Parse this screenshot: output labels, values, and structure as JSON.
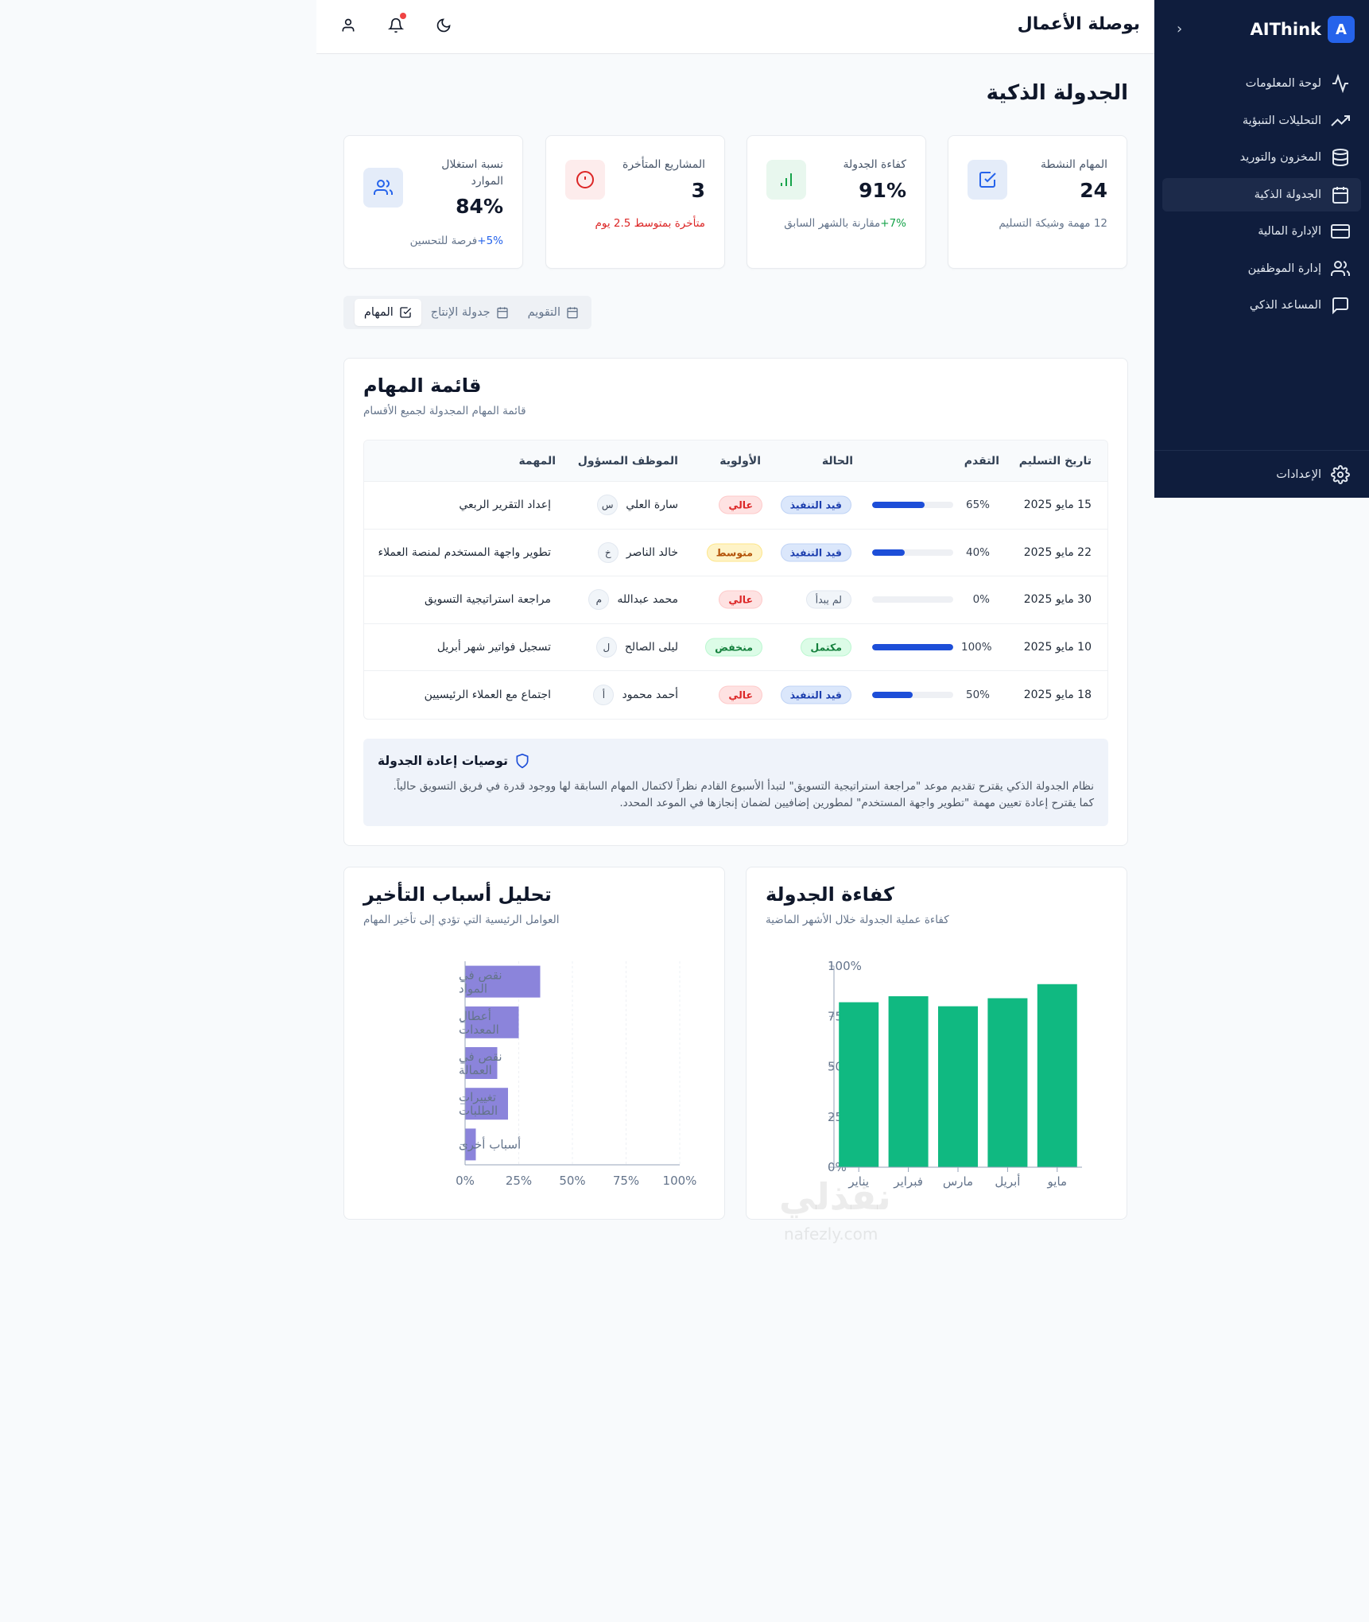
{
  "sidebar": {
    "brand_letter": "A",
    "brand_name": "AIThink",
    "collapse": "‹",
    "items": [
      {
        "label": "لوحة المعلومات"
      },
      {
        "label": "التحليلات التنبؤية"
      },
      {
        "label": "المخزون والتوريد"
      },
      {
        "label": "الجدولة الذكية"
      },
      {
        "label": "الإدارة المالية"
      },
      {
        "label": "إدارة الموظفين"
      },
      {
        "label": "المساعد الذكي"
      }
    ],
    "settings_label": "الإعدادات"
  },
  "header": {
    "title": "بوصلة الأعمال"
  },
  "page_title": "الجدولة الذكية",
  "stats": [
    {
      "label": "المهام النشطة",
      "value": "24",
      "note": "12 مهمة وشيكة التسليم",
      "color": "#2563eb"
    },
    {
      "label": "كفاءة الجدولة",
      "value": "91%",
      "note_highlight": "+7%",
      "note": "مقارنة بالشهر السابق",
      "color": "#16a34a"
    },
    {
      "label": "المشاريع المتأخرة",
      "value": "3",
      "note": "متأخرة بمتوسط 2.5 يوم",
      "color": "#dc2626"
    },
    {
      "label": "نسبة استغلال الموارد",
      "value": "84%",
      "note_highlight": "+5%",
      "note": "فرصة للتحسين",
      "color": "#2563eb"
    }
  ],
  "tabs": [
    {
      "label": "المهام"
    },
    {
      "label": "جدولة الإنتاج"
    },
    {
      "label": "التقويم"
    }
  ],
  "tasks": {
    "title": "قائمة المهام",
    "subtitle": "قائمة المهام المجدولة لجميع الأقسام",
    "columns": {
      "date": "تاريخ التسليم",
      "progress": "التقدم",
      "status": "الحالة",
      "priority": "الأولوية",
      "employee": "الموظف المسؤول",
      "task": "المهمة"
    },
    "rows": [
      {
        "date": "15 مايو 2025",
        "progress": 65,
        "progress_label": "65%",
        "status": "قيد التنفيذ",
        "status_type": "prog",
        "priority": "عالي",
        "priority_type": "high",
        "initial": "س",
        "employee": "سارة العلي",
        "task": "إعداد التقرير الربعي"
      },
      {
        "date": "22 مايو 2025",
        "progress": 40,
        "progress_label": "40%",
        "status": "قيد التنفيذ",
        "status_type": "prog",
        "priority": "متوسط",
        "priority_type": "med",
        "initial": "خ",
        "employee": "خالد الناصر",
        "task": "تطوير واجهة المستخدم لمنصة العملاء"
      },
      {
        "date": "30 مايو 2025",
        "progress": 0,
        "progress_label": "0%",
        "status": "لم يبدأ",
        "status_type": "none",
        "priority": "عالي",
        "priority_type": "high",
        "initial": "م",
        "employee": "محمد عبدالله",
        "task": "مراجعة استراتيجية التسويق"
      },
      {
        "date": "10 مايو 2025",
        "progress": 100,
        "progress_label": "100%",
        "status": "مكتمل",
        "status_type": "done",
        "priority": "منخفض",
        "priority_type": "low",
        "initial": "ل",
        "employee": "ليلى الصالح",
        "task": "تسجيل فواتير شهر أبريل"
      },
      {
        "date": "18 مايو 2025",
        "progress": 50,
        "progress_label": "50%",
        "status": "قيد التنفيذ",
        "status_type": "prog",
        "priority": "عالي",
        "priority_type": "high",
        "initial": "أ",
        "employee": "أحمد محمود",
        "task": "اجتماع مع العملاء الرئيسيين"
      }
    ]
  },
  "recommendations": {
    "title": "توصيات إعادة الجدولة",
    "text": "نظام الجدولة الذكي يقترح تقديم موعد \"مراجعة استراتيجية التسويق\" لتبدأ الأسبوع القادم نظراً لاكتمال المهام السابقة لها ووجود قدرة في فريق التسويق حالياً. كما يقترح إعادة تعيين مهمة \"تطوير واجهة المستخدم\" لمطورين إضافيين لضمان إنجازها في الموعد المحدد."
  },
  "delay_chart": {
    "title": "تحليل أسباب التأخير",
    "subtitle": "العوامل الرئيسية التي تؤدي إلى تأخير المهام"
  },
  "efficiency_chart": {
    "title": "كفاءة الجدولة",
    "subtitle": "كفاءة عملية الجدولة خلال الأشهر الماضية"
  },
  "chart_data": [
    {
      "type": "bar",
      "orientation": "horizontal",
      "categories": [
        [
          "نقص في",
          "المواد"
        ],
        [
          "أعطال",
          "المعدات"
        ],
        [
          "نقص في",
          "العمالة"
        ],
        [
          "تغييرات",
          "الطلبات"
        ],
        [
          "أسباب أخرى"
        ]
      ],
      "values": [
        35,
        25,
        15,
        20,
        5
      ],
      "xlim": [
        0,
        100
      ],
      "xticks": [
        "0%",
        "25%",
        "50%",
        "75%",
        "100%"
      ],
      "color": "#8b84db",
      "grid": true
    },
    {
      "type": "bar",
      "orientation": "vertical",
      "categories": [
        "يناير",
        "فبراير",
        "مارس",
        "أبريل",
        "مايو"
      ],
      "values": [
        82,
        85,
        80,
        84,
        91
      ],
      "ylim": [
        0,
        100
      ],
      "yticks": [
        "0%",
        "25%",
        "50%",
        "75%",
        "100%"
      ],
      "color": "#10b981",
      "grid": false
    }
  ],
  "watermark": {
    "text": "نفذلي",
    "sub": "nafezly.com"
  }
}
